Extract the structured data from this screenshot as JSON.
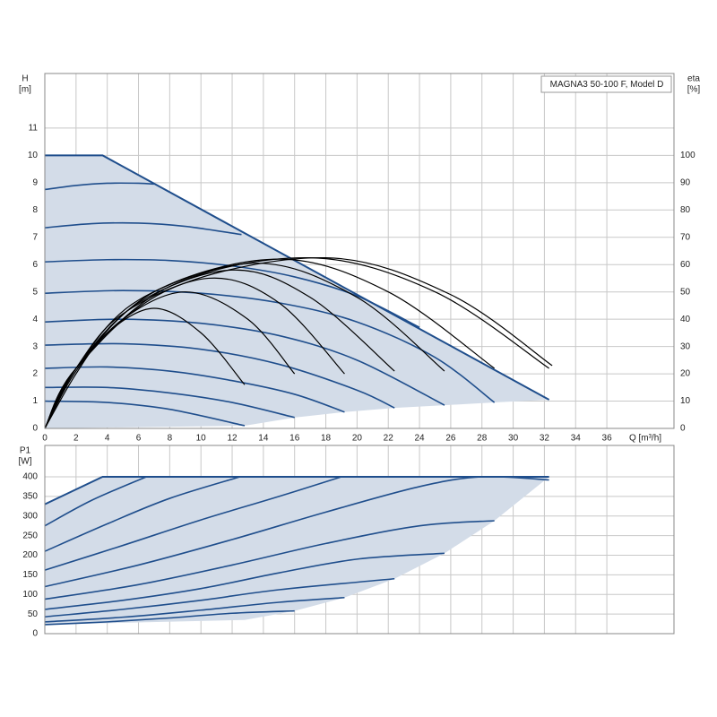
{
  "chart_data": [
    {
      "type": "line",
      "title": "MAGNA3 50-100 F, Model D",
      "y_label": [
        "H",
        "[m]"
      ],
      "y2_label": [
        "eta",
        "[%]"
      ],
      "x_label": "Q [m³/h]",
      "xlim": [
        0,
        40.3
      ],
      "xticks": [
        0,
        2,
        4,
        6,
        8,
        10,
        12,
        14,
        16,
        18,
        20,
        22,
        24,
        26,
        28,
        30,
        32,
        34,
        36
      ],
      "ylim": [
        0,
        13
      ],
      "yticks": [
        0,
        1,
        2,
        3,
        4,
        5,
        6,
        7,
        8,
        9,
        10,
        11
      ],
      "y2lim": [
        0,
        130
      ],
      "y2ticks": [
        0,
        10,
        20,
        30,
        40,
        50,
        60,
        70,
        80,
        90,
        100
      ],
      "grid": true,
      "area": {
        "color": "#d3dce8",
        "line_color": "#1f4e8c",
        "upper": {
          "x": [
            0,
            3.7,
            32.3
          ],
          "values": [
            10,
            10,
            1.05
          ]
        },
        "lower": {
          "x": [
            0,
            12.8,
            16,
            19.2,
            22.4,
            25.6,
            28.8,
            32.3
          ],
          "values": [
            0,
            0.1,
            0.4,
            0.6,
            0.75,
            0.85,
            0.95,
            1.05
          ]
        }
      },
      "series": [
        {
          "color": "#1f4e8c",
          "x": [
            0,
            2,
            4,
            6,
            7
          ],
          "values": [
            8.75,
            8.9,
            8.98,
            8.98,
            8.95
          ]
        },
        {
          "color": "#1f4e8c",
          "x": [
            0,
            3,
            6,
            9,
            12.6
          ],
          "values": [
            7.35,
            7.5,
            7.52,
            7.4,
            7.1
          ]
        },
        {
          "color": "#1f4e8c",
          "x": [
            0,
            4,
            8,
            12,
            16,
            20,
            24
          ],
          "values": [
            6.1,
            6.18,
            6.15,
            5.95,
            5.55,
            4.85,
            3.7
          ]
        },
        {
          "color": "#1f4e8c",
          "x": [
            0,
            5,
            10,
            15,
            20,
            25,
            28.8
          ],
          "values": [
            4.95,
            5.05,
            4.95,
            4.6,
            3.9,
            2.6,
            0.95
          ]
        },
        {
          "color": "#1f4e8c",
          "x": [
            0,
            5,
            10,
            15,
            20,
            25.6
          ],
          "values": [
            3.9,
            4.0,
            3.85,
            3.4,
            2.5,
            0.85
          ]
        },
        {
          "color": "#1f4e8c",
          "x": [
            0,
            5,
            10,
            15,
            20,
            22.4
          ],
          "values": [
            3.05,
            3.1,
            2.9,
            2.35,
            1.4,
            0.75
          ]
        },
        {
          "color": "#1f4e8c",
          "x": [
            0,
            4,
            8,
            12,
            16,
            19.2
          ],
          "values": [
            2.2,
            2.25,
            2.1,
            1.75,
            1.25,
            0.6
          ]
        },
        {
          "color": "#1f4e8c",
          "x": [
            0,
            4,
            8,
            12,
            16
          ],
          "values": [
            1.5,
            1.5,
            1.3,
            0.95,
            0.4
          ]
        },
        {
          "color": "#1f4e8c",
          "x": [
            0,
            4,
            8,
            12.8
          ],
          "values": [
            1.0,
            0.95,
            0.7,
            0.1
          ]
        },
        {
          "color": "#000000",
          "axis": "y2",
          "x": [
            0,
            2,
            4,
            7,
            10,
            12.8
          ],
          "values": [
            0,
            20,
            35,
            44,
            35,
            16
          ]
        },
        {
          "color": "#000000",
          "axis": "y2",
          "x": [
            0,
            2,
            5,
            9,
            13,
            16
          ],
          "values": [
            0,
            21,
            40,
            50,
            40,
            20
          ]
        },
        {
          "color": "#000000",
          "axis": "y2",
          "x": [
            0,
            2,
            5,
            10.5,
            15,
            19.2
          ],
          "values": [
            0,
            22,
            42,
            55,
            46,
            20
          ]
        },
        {
          "color": "#000000",
          "axis": "y2",
          "x": [
            0,
            2,
            6,
            12,
            17,
            22.4
          ],
          "values": [
            0,
            22,
            46,
            58,
            48,
            21
          ]
        },
        {
          "color": "#000000",
          "axis": "y2",
          "x": [
            0,
            2,
            6,
            13.5,
            20,
            25.6
          ],
          "values": [
            0,
            22,
            47,
            60.5,
            48,
            21
          ]
        },
        {
          "color": "#000000",
          "axis": "y2",
          "x": [
            0,
            2,
            7,
            15,
            22,
            28.8
          ],
          "values": [
            0,
            22,
            50,
            62,
            50,
            22
          ]
        },
        {
          "color": "#000000",
          "axis": "y2",
          "x": [
            0,
            2,
            8,
            17,
            25,
            32.3
          ],
          "values": [
            0,
            22,
            52,
            62.5,
            50,
            22
          ]
        },
        {
          "color": "#000000",
          "axis": "y2",
          "x": [
            0,
            2,
            8,
            18,
            26,
            32.5
          ],
          "values": [
            0,
            22,
            51,
            62.5,
            49,
            23
          ]
        }
      ]
    },
    {
      "type": "line",
      "y_label": [
        "P1",
        "[W]"
      ],
      "xlim": [
        0,
        40.3
      ],
      "ylim": [
        0,
        480
      ],
      "yticks": [
        0,
        50,
        100,
        150,
        200,
        250,
        300,
        350,
        400
      ],
      "grid": true,
      "area": {
        "color": "#d3dce8",
        "line_color": "#1f4e8c",
        "upper": {
          "x": [
            0,
            3.7,
            32.3
          ],
          "values": [
            330,
            400,
            400
          ]
        },
        "lower": {
          "x": [
            0,
            12.8,
            16,
            19.2,
            22.4,
            25.6,
            28.8,
            32.3
          ],
          "values": [
            23,
            35,
            58,
            92,
            140,
            205,
            288,
            400
          ]
        }
      },
      "series": [
        {
          "color": "#1f4e8c",
          "x": [
            0,
            3,
            6.5
          ],
          "values": [
            275,
            340,
            400
          ]
        },
        {
          "color": "#1f4e8c",
          "x": [
            0,
            4,
            8,
            12.5
          ],
          "values": [
            210,
            280,
            345,
            400
          ]
        },
        {
          "color": "#1f4e8c",
          "x": [
            0,
            5,
            10,
            15,
            19
          ],
          "values": [
            162,
            225,
            290,
            350,
            400
          ]
        },
        {
          "color": "#1f4e8c",
          "x": [
            0,
            6,
            12,
            18,
            24,
            28,
            32.3
          ],
          "values": [
            120,
            175,
            240,
            310,
            375,
            400,
            392
          ]
        },
        {
          "color": "#1f4e8c",
          "x": [
            0,
            6,
            12,
            18,
            24,
            28.8
          ],
          "values": [
            88,
            125,
            175,
            230,
            275,
            288
          ]
        },
        {
          "color": "#1f4e8c",
          "x": [
            0,
            5,
            10,
            15,
            20,
            25.6
          ],
          "values": [
            62,
            85,
            115,
            155,
            190,
            205
          ]
        },
        {
          "color": "#1f4e8c",
          "x": [
            0,
            5,
            10,
            15,
            22.4
          ],
          "values": [
            43,
            62,
            85,
            112,
            140
          ]
        },
        {
          "color": "#1f4e8c",
          "x": [
            0,
            5,
            10,
            15,
            19.2
          ],
          "values": [
            30,
            42,
            60,
            80,
            92
          ]
        },
        {
          "color": "#1f4e8c",
          "x": [
            0,
            4,
            8,
            12,
            16
          ],
          "values": [
            23,
            30,
            40,
            52,
            58
          ]
        }
      ]
    }
  ]
}
